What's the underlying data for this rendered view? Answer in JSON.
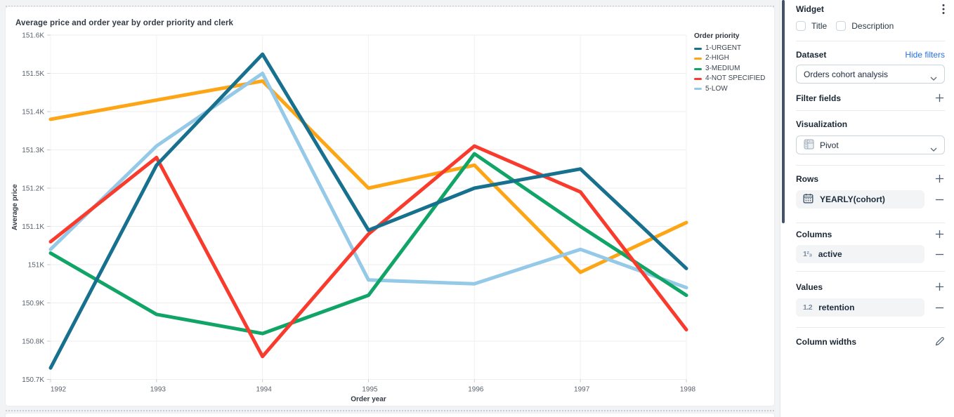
{
  "chart_data": {
    "type": "line",
    "title": "Average price and order year by order priority and clerk",
    "xlabel": "Order year",
    "ylabel": "Average price",
    "x": [
      1992,
      1993,
      1994,
      1995,
      1996,
      1997,
      1998
    ],
    "ylim": [
      150.7,
      151.6
    ],
    "y_ticks": [
      {
        "value": 151.6,
        "label": "151.6K"
      },
      {
        "value": 151.5,
        "label": "151.5K"
      },
      {
        "value": 151.4,
        "label": "151.4K"
      },
      {
        "value": 151.3,
        "label": "151.3K"
      },
      {
        "value": 151.2,
        "label": "151.2K"
      },
      {
        "value": 151.1,
        "label": "151.1K"
      },
      {
        "value": 151.0,
        "label": "151K"
      },
      {
        "value": 150.9,
        "label": "150.9K"
      },
      {
        "value": 150.8,
        "label": "150.8K"
      },
      {
        "value": 150.7,
        "label": "150.7K"
      }
    ],
    "legend": {
      "title": "Order priority",
      "position": "right"
    },
    "series": [
      {
        "name": "1-URGENT",
        "color": "#16708e",
        "values": [
          150.73,
          151.26,
          151.55,
          151.09,
          151.2,
          151.25,
          150.99
        ]
      },
      {
        "name": "2-HIGH",
        "color": "#fda514",
        "values": [
          151.38,
          151.43,
          151.48,
          151.2,
          151.26,
          150.98,
          151.11
        ]
      },
      {
        "name": "3-MEDIUM",
        "color": "#10a567",
        "values": [
          151.03,
          150.87,
          150.82,
          150.92,
          151.29,
          151.1,
          150.92
        ]
      },
      {
        "name": "4-NOT SPECIFIED",
        "color": "#f93b2d",
        "values": [
          151.06,
          151.28,
          150.76,
          151.08,
          151.31,
          151.19,
          150.83
        ]
      },
      {
        "name": "5-LOW",
        "color": "#95c9e8",
        "values": [
          151.04,
          151.31,
          151.5,
          150.96,
          150.95,
          151.04,
          150.94
        ]
      }
    ],
    "draw_order": [
      1,
      4,
      2,
      3,
      0
    ],
    "grid": true
  },
  "panel": {
    "title": "Widget",
    "widget_options": [
      {
        "label": "Title",
        "checked": false
      },
      {
        "label": "Description",
        "checked": false
      }
    ],
    "dataset": {
      "label": "Dataset",
      "link_label": "Hide filters",
      "selected": "Orders cohort analysis"
    },
    "filter_fields": {
      "label": "Filter fields"
    },
    "visualization": {
      "label": "Visualization",
      "selected": "Pivot"
    },
    "rows": {
      "label": "Rows",
      "items": [
        {
          "label": "YEARLY(cohort)",
          "icon": "calendar-icon"
        }
      ]
    },
    "columns": {
      "label": "Columns",
      "items": [
        {
          "label": "active",
          "icon": "integer-field-icon",
          "icon_glyph": "1²₃"
        }
      ]
    },
    "values": {
      "label": "Values",
      "items": [
        {
          "label": "retention",
          "icon": "decimal-field-icon",
          "icon_glyph": "1.2"
        }
      ]
    },
    "column_widths": {
      "label": "Column widths"
    },
    "colors": {
      "link": "#2570e8",
      "scrollbar": "#42536b"
    }
  }
}
